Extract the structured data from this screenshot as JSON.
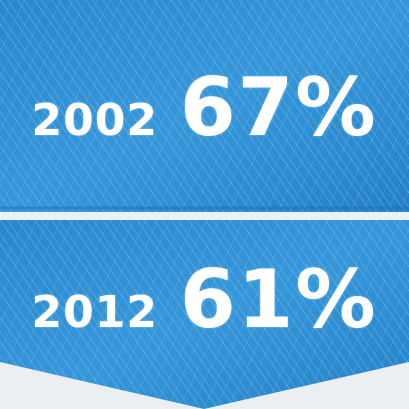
{
  "colors": {
    "panel": "#2f8fd4",
    "panel_dark": "#1f76bd",
    "hatch": "#9fd0f2",
    "text": "#ffffff",
    "background": "#eceff1"
  },
  "stats": [
    {
      "year": "2002",
      "percent": "67%"
    },
    {
      "year": "2012",
      "percent": "61%"
    }
  ]
}
